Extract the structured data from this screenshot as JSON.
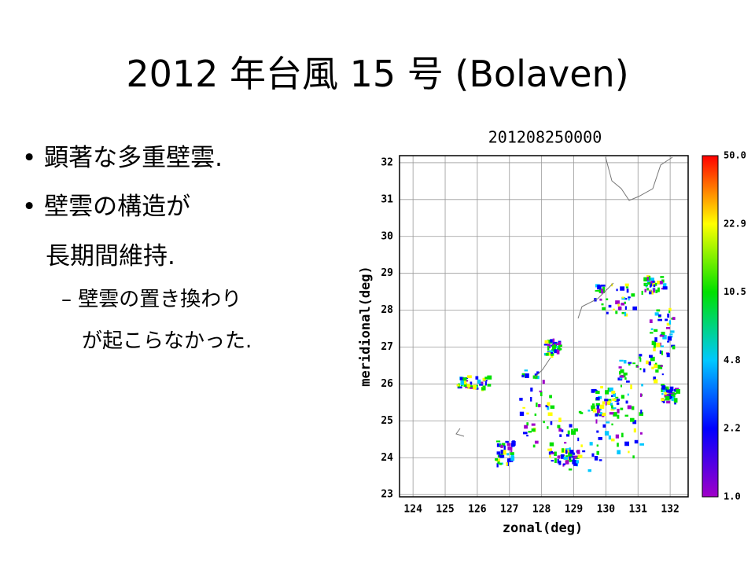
{
  "slide": {
    "title": "2012 年台風 15 号 (Bolaven)",
    "bullets": [
      {
        "text": "顕著な多重壁雲."
      },
      {
        "text": "壁雲の構造が",
        "continuation": "長期間維持."
      }
    ],
    "sub_bullets": [
      {
        "text": "壁雲の置き換わり",
        "continuation": "が起こらなかった."
      }
    ],
    "figure": {
      "title": "201208250000",
      "xlabel": "zonal(deg)",
      "ylabel": "meridional(deg)",
      "xlim": [
        123.58,
        132.56
      ],
      "ylim": [
        22.94,
        32.19
      ],
      "xticks": [
        124,
        125,
        126,
        127,
        128,
        129,
        130,
        131,
        132
      ],
      "yticks": [
        23,
        24,
        25,
        26,
        27,
        28,
        29,
        30,
        31,
        32
      ],
      "colorbar_labels": [
        "50.0",
        "22.9",
        "10.5",
        "4.8",
        "2.2",
        "1.0"
      ]
    }
  }
}
